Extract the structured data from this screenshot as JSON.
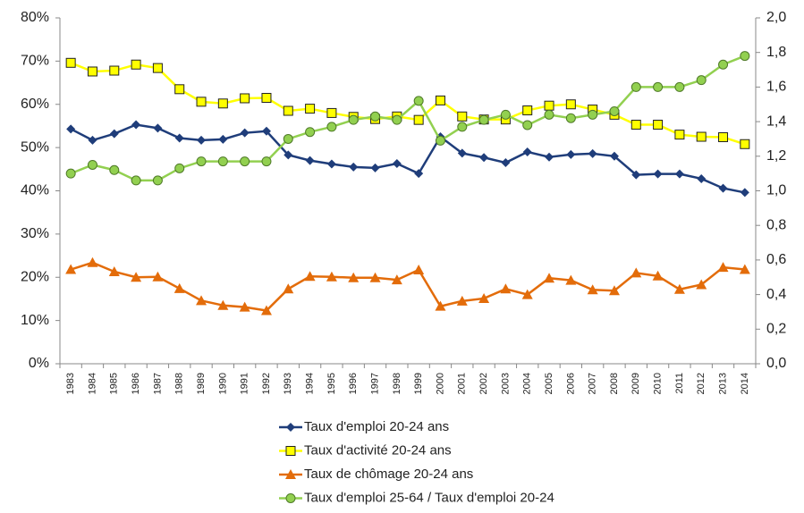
{
  "chart_data": {
    "type": "line",
    "categories": [
      "1983",
      "1984",
      "1985",
      "1986",
      "1987",
      "1988",
      "1989",
      "1990",
      "1991",
      "1992",
      "1993",
      "1994",
      "1995",
      "1996",
      "1997",
      "1998",
      "1999",
      "2000",
      "2001",
      "2002",
      "2003",
      "2004",
      "2005",
      "2006",
      "2007",
      "2008",
      "2009",
      "2010",
      "2011",
      "2012",
      "2013",
      "2014"
    ],
    "series": [
      {
        "name": "Taux d'emploi 20-24 ans",
        "color": "#1f3d7a",
        "marker": "diamond",
        "values": [
          54.3,
          51.7,
          53.2,
          55.3,
          54.5,
          52.2,
          51.7,
          51.9,
          53.4,
          53.8,
          48.3,
          47.0,
          46.2,
          45.5,
          45.3,
          46.3,
          44.0,
          52.5,
          48.7,
          47.7,
          46.5,
          49.0,
          47.8,
          48.4,
          48.6,
          48.0,
          43.7,
          43.9,
          43.9,
          42.8,
          40.6,
          39.6
        ]
      },
      {
        "name": "Taux d'activité 20-24 ans",
        "color": "#ffff00",
        "marker": "square",
        "values": [
          69.6,
          67.6,
          67.8,
          69.2,
          68.4,
          63.5,
          60.6,
          60.2,
          61.4,
          61.5,
          58.5,
          59.0,
          58.0,
          57.1,
          56.6,
          57.2,
          56.4,
          60.9,
          57.2,
          56.5,
          56.5,
          58.6,
          59.7,
          60.0,
          58.8,
          57.6,
          55.3,
          55.3,
          53.0,
          52.5,
          52.4,
          50.8
        ]
      },
      {
        "name": "Taux de chômage 20-24 ans",
        "color": "#e36c0a",
        "marker": "triangle",
        "values": [
          21.8,
          23.4,
          21.3,
          20.0,
          20.1,
          17.4,
          14.6,
          13.5,
          13.1,
          12.3,
          17.3,
          20.2,
          20.1,
          19.9,
          19.9,
          19.4,
          21.7,
          13.3,
          14.5,
          15.1,
          17.3,
          16.0,
          19.8,
          19.3,
          17.1,
          16.9,
          21.0,
          20.3,
          17.2,
          18.3,
          22.3,
          21.8
        ]
      },
      {
        "name": "Taux d'emploi 25-64 / Taux d'emploi 20-24",
        "color": "#92d050",
        "marker": "circle",
        "axis": "y2",
        "values": [
          1.1,
          1.15,
          1.12,
          1.06,
          1.06,
          1.13,
          1.17,
          1.17,
          1.17,
          1.17,
          1.3,
          1.34,
          1.37,
          1.41,
          1.43,
          1.41,
          1.52,
          1.29,
          1.37,
          1.41,
          1.44,
          1.38,
          1.44,
          1.42,
          1.44,
          1.46,
          1.6,
          1.6,
          1.6,
          1.64,
          1.73,
          1.78
        ]
      }
    ],
    "ylim": [
      0,
      80
    ],
    "yticks": [
      {
        "value": 0,
        "label": "0%"
      },
      {
        "value": 10,
        "label": "10%"
      },
      {
        "value": 20,
        "label": "20%"
      },
      {
        "value": 30,
        "label": "30%"
      },
      {
        "value": 40,
        "label": "40%"
      },
      {
        "value": 50,
        "label": "50%"
      },
      {
        "value": 60,
        "label": "60%"
      },
      {
        "value": 70,
        "label": "70%"
      },
      {
        "value": 80,
        "label": "80%"
      }
    ],
    "y2lim": [
      0,
      2
    ],
    "y2ticks": [
      {
        "value": 0,
        "label": "0,0"
      },
      {
        "value": 0.2,
        "label": "0,2"
      },
      {
        "value": 0.4,
        "label": "0,4"
      },
      {
        "value": 0.6,
        "label": "0,6"
      },
      {
        "value": 0.8,
        "label": "0,8"
      },
      {
        "value": 1,
        "label": "1,0"
      },
      {
        "value": 1.2,
        "label": "1,2"
      },
      {
        "value": 1.4,
        "label": "1,4"
      },
      {
        "value": 1.6,
        "label": "1,6"
      },
      {
        "value": 1.8,
        "label": "1,8"
      },
      {
        "value": 2,
        "label": "2,0"
      }
    ],
    "grid": false,
    "legend": "bottom"
  }
}
